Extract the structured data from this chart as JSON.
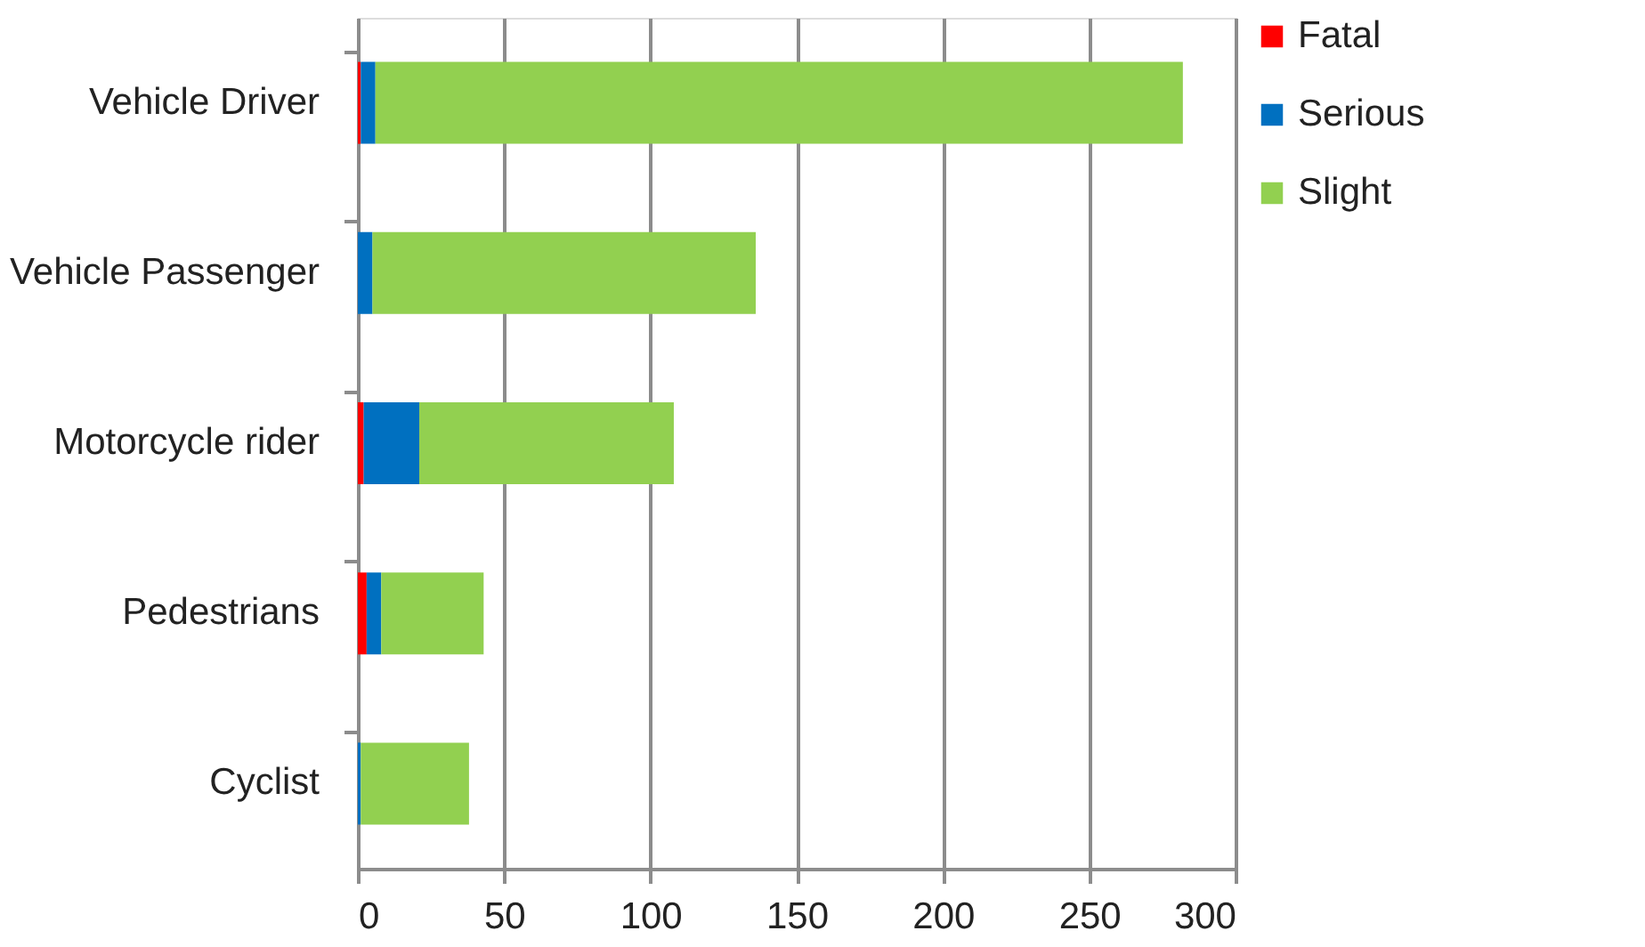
{
  "chart_data": {
    "type": "bar",
    "orientation": "horizontal",
    "stacked": true,
    "categories": [
      "Vehicle Driver",
      "Vehicle Passenger",
      "Motorcycle rider",
      "Pedestrians",
      "Cyclist"
    ],
    "series": [
      {
        "name": "Fatal",
        "color": "#ff0000",
        "values": [
          1,
          0,
          2,
          3,
          0
        ]
      },
      {
        "name": "Serious",
        "color": "#0070c0",
        "values": [
          5,
          5,
          19,
          5,
          1
        ]
      },
      {
        "name": "Slight",
        "color": "#92d050",
        "values": [
          276,
          131,
          87,
          35,
          37
        ]
      }
    ],
    "xlim": [
      0,
      300
    ],
    "xticks": [
      0,
      50,
      100,
      150,
      200,
      250,
      300
    ],
    "grid": "x",
    "legend": "right"
  }
}
